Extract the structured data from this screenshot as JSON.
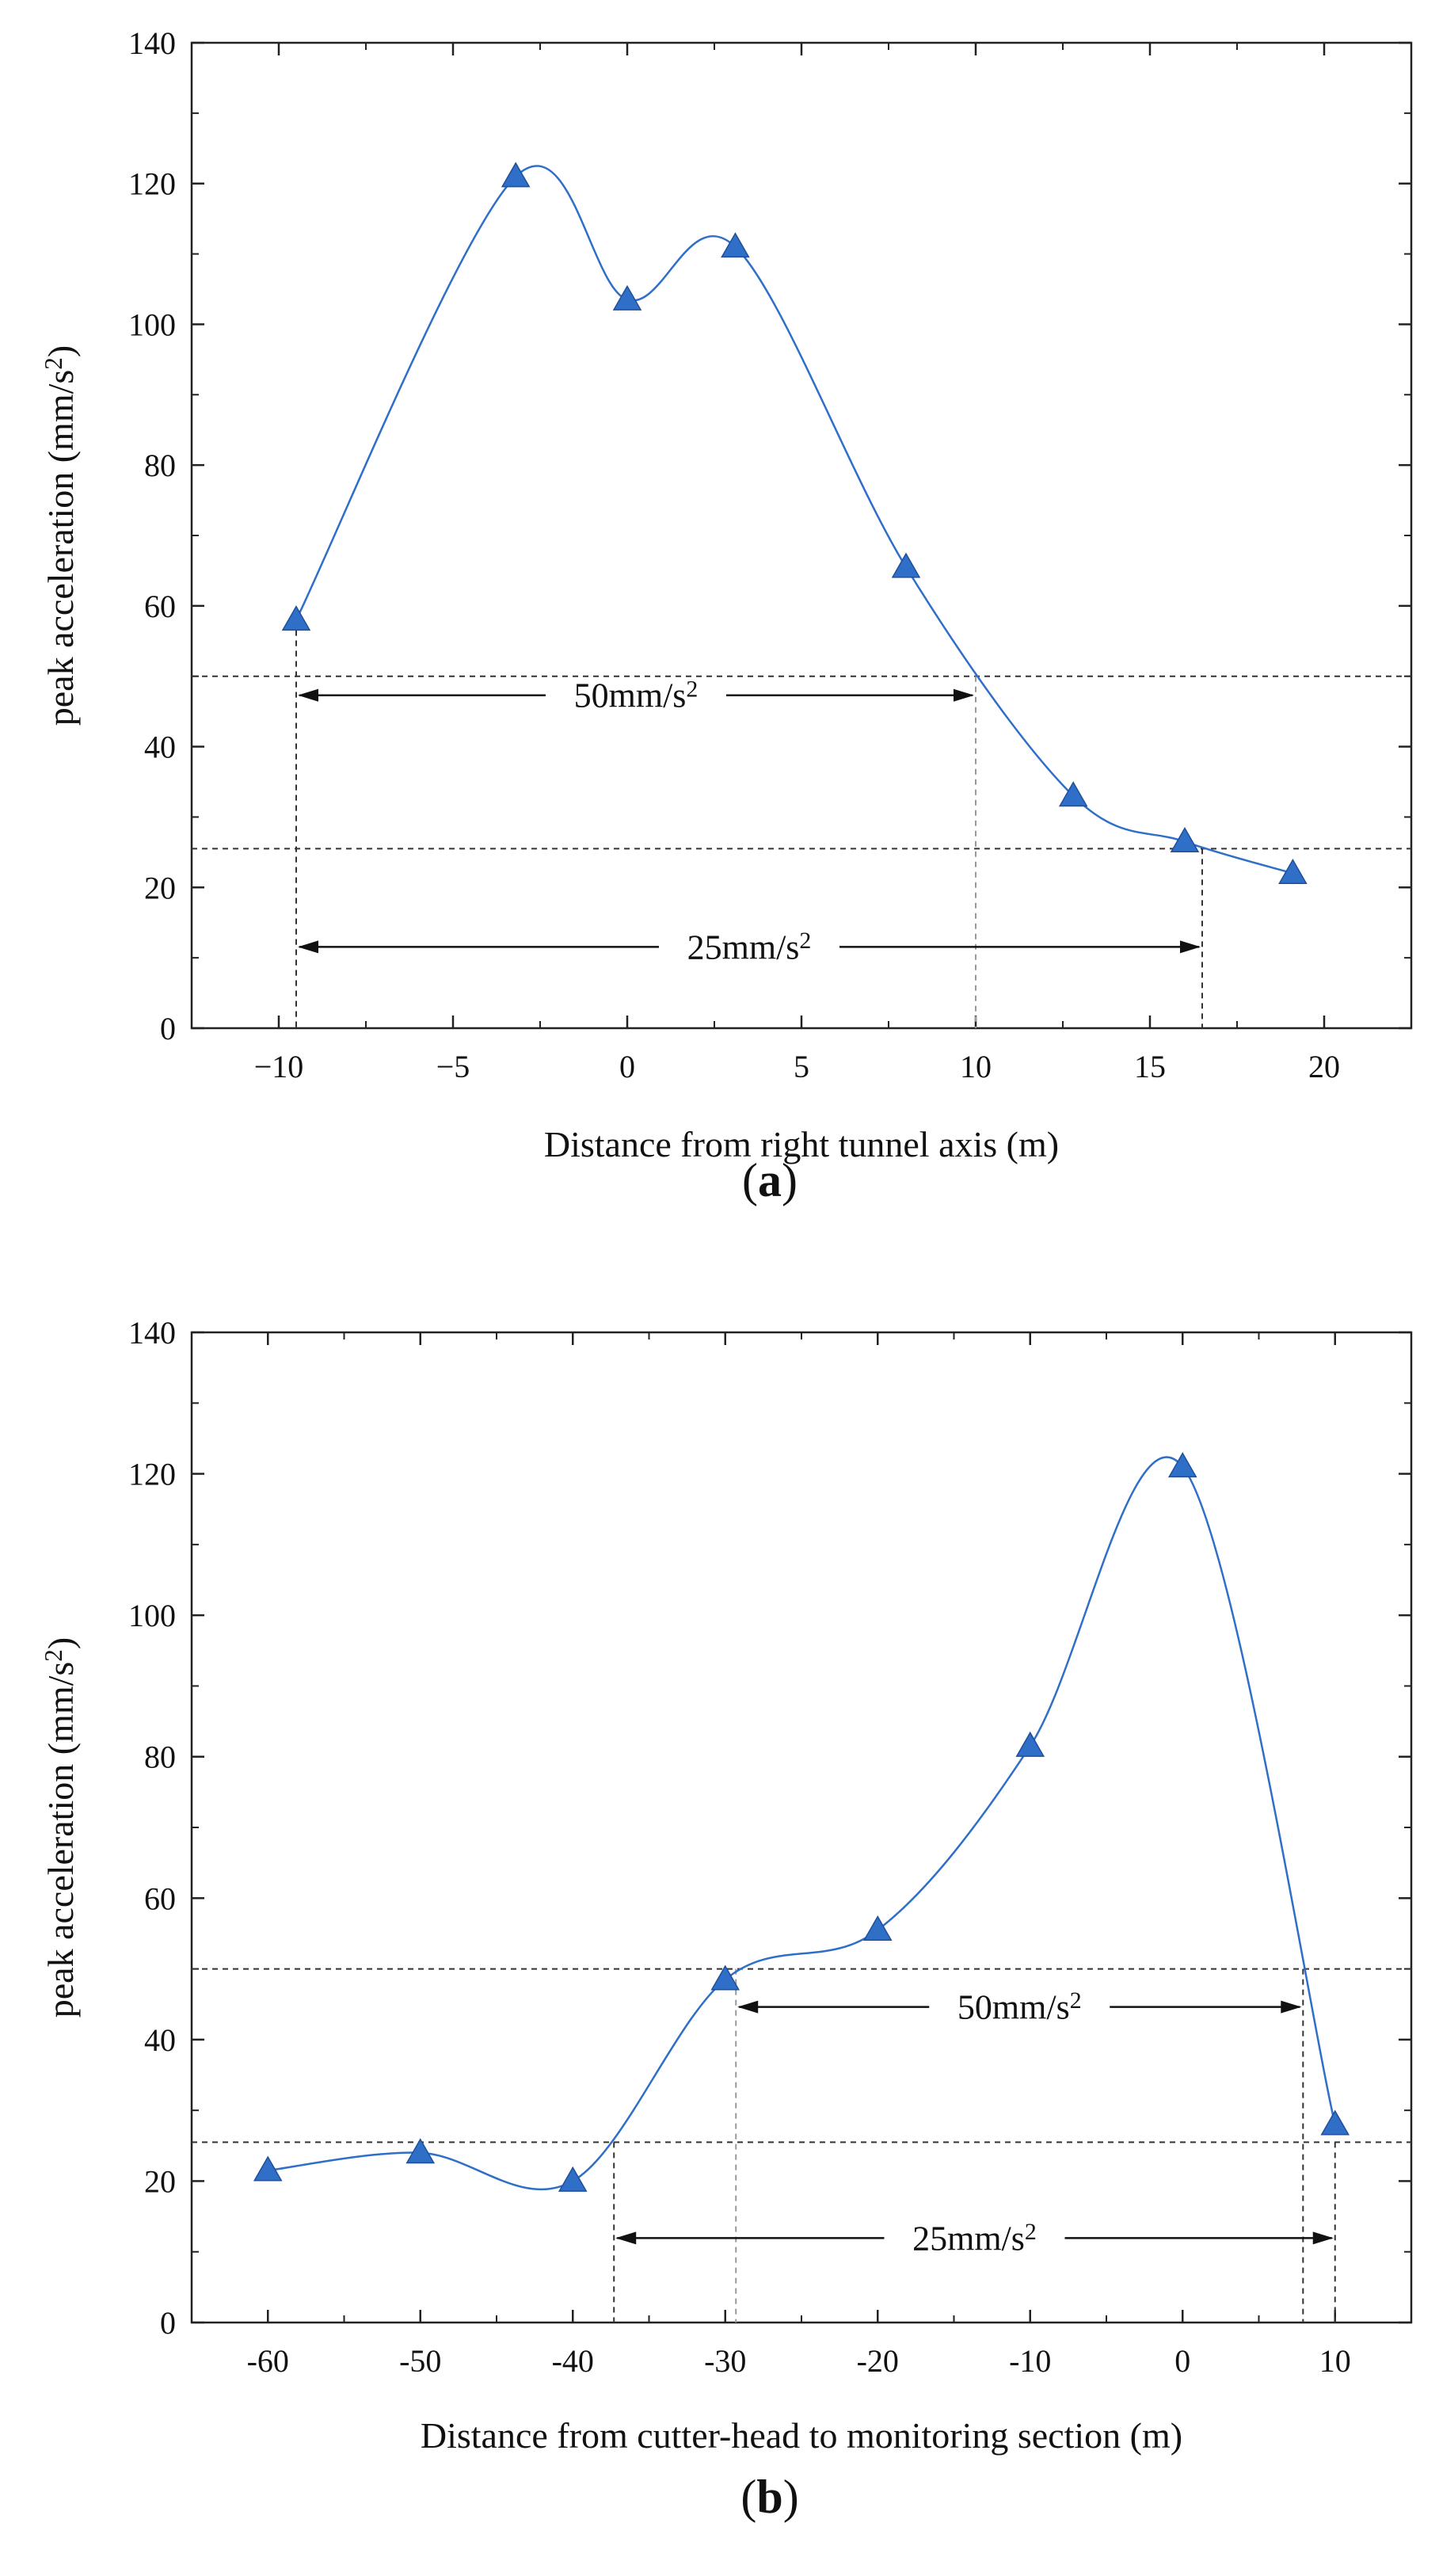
{
  "chart_data": [
    {
      "type": "line",
      "panel": "a",
      "xlabel": "Distance from right tunnel axis (m)",
      "ylabel": "peak acceleration (mm/s2)",
      "ylabel_main": "peak acceleration (mm/s",
      "ylabel_sup": "2",
      "ylabel_tail": ")",
      "xlim": [
        -12.5,
        22.5
      ],
      "ylim": [
        0,
        140
      ],
      "xticks": [
        -10,
        -5,
        0,
        5,
        10,
        15,
        20
      ],
      "xtick_labels": [
        "−10",
        "−5",
        "0",
        "5",
        "10",
        "15",
        "20"
      ],
      "yticks": [
        0,
        20,
        40,
        60,
        80,
        100,
        120,
        140
      ],
      "series": [
        {
          "name": "peak acceleration",
          "color": "#2f6fc8",
          "x": [
            -9.5,
            -3.2,
            0,
            3.1,
            8,
            12.8,
            16,
            19.1
          ],
          "y": [
            58,
            121,
            103.5,
            111,
            65.5,
            33,
            26.5,
            22
          ]
        }
      ],
      "thresholds": [
        {
          "value": 50,
          "label_main": "50mm/s",
          "label_sup": "2",
          "from": -9.5,
          "to": 10
        },
        {
          "value": 25.5,
          "label_main": "25mm/s",
          "label_sup": "2",
          "from": -9.5,
          "to": 16.5
        }
      ],
      "panel_label": "a"
    },
    {
      "type": "line",
      "panel": "b",
      "xlabel": "Distance from cutter-head to monitoring section (m)",
      "ylabel": "peak acceleration (mm/s2)",
      "ylabel_main": "peak acceleration (mm/s",
      "ylabel_sup": "2",
      "ylabel_tail": ")",
      "xlim": [
        -65,
        15
      ],
      "ylim": [
        0,
        140
      ],
      "xticks": [
        -60,
        -50,
        -40,
        -30,
        -20,
        -10,
        0,
        10
      ],
      "xtick_labels": [
        "-60",
        "-50",
        "-40",
        "-30",
        "-20",
        "-10",
        "0",
        "10"
      ],
      "yticks": [
        0,
        20,
        40,
        60,
        80,
        100,
        120,
        140
      ],
      "series": [
        {
          "name": "peak acceleration",
          "color": "#2f6fc8",
          "x": [
            -60,
            -50,
            -40,
            -30,
            -20,
            -10,
            0,
            10
          ],
          "y": [
            21.5,
            24,
            20,
            48.5,
            55.5,
            81.5,
            121,
            28
          ]
        }
      ],
      "thresholds": [
        {
          "value": 50,
          "label_main": "50mm/s",
          "label_sup": "2",
          "from": -29.3,
          "to": 7.9
        },
        {
          "value": 25.5,
          "label_main": "25mm/s",
          "label_sup": "2",
          "from": -37.3,
          "to": 10
        }
      ],
      "panel_label": "b"
    }
  ]
}
